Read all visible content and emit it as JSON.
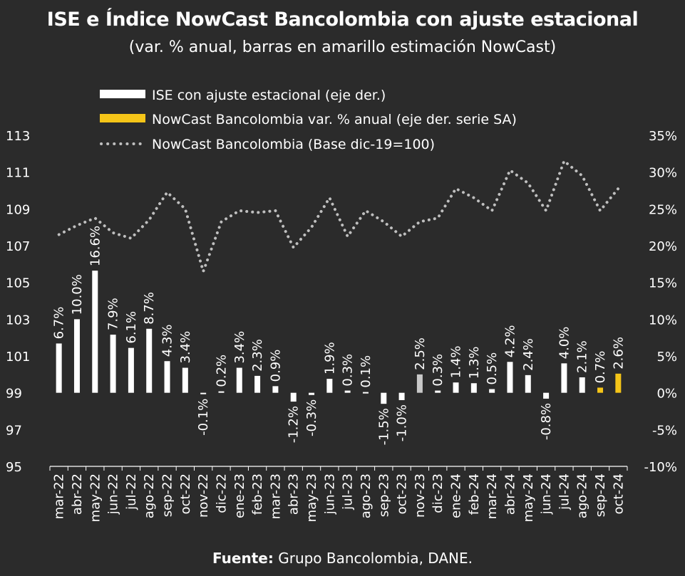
{
  "chart_data": {
    "type": "bar",
    "title": "ISE e Índice NowCast Bancolombia con ajuste estacional",
    "subtitle": "(var. % anual, barras en amarillo estimación NowCast)",
    "source_label": "Fuente:",
    "source_text": "Grupo Bancolombia, DANE.",
    "categories": [
      "mar-22",
      "abr-22",
      "may-22",
      "jun-22",
      "jul-22",
      "ago-22",
      "sep-22",
      "oct-22",
      "nov-22",
      "dic-22",
      "ene-23",
      "feb-23",
      "mar-23",
      "abr-23",
      "may-23",
      "jun-23",
      "jul-23",
      "ago-23",
      "sep-23",
      "oct-23",
      "nov-23",
      "dic-23",
      "ene-24",
      "feb-24",
      "mar-24",
      "abr-24",
      "may-24",
      "jun-24",
      "jul-24",
      "ago-24",
      "sep-24",
      "oct-24"
    ],
    "series": [
      {
        "name": "ISE con ajuste estacional  (eje der.)",
        "axis": "right",
        "kind": "bar",
        "color": "#ffffff",
        "values": [
          6.7,
          10.0,
          16.6,
          7.9,
          6.1,
          8.7,
          4.3,
          3.4,
          -0.1,
          0.2,
          3.4,
          2.3,
          0.9,
          -1.2,
          -0.3,
          1.9,
          0.3,
          0.1,
          -1.5,
          -1.0,
          2.5,
          0.3,
          1.4,
          1.3,
          0.5,
          4.2,
          2.4,
          -0.8,
          4.0,
          2.1,
          null,
          null
        ],
        "labels": [
          "6.7%",
          "10.0%",
          "16.6%",
          "7.9%",
          "6.1%",
          "8.7%",
          "4.3%",
          "3.4%",
          "-0.1%",
          "0.2%",
          "3.4%",
          "2.3%",
          "0.9%",
          "-1.2%",
          "-0.3%",
          "1.9%",
          "0.3%",
          "0.1%",
          "-1.5%",
          "-1.0%",
          "2.5%",
          "0.3%",
          "1.4%",
          "1.3%",
          "0.5%",
          "4.2%",
          "2.4%",
          "-0.8%",
          "4.0%",
          "2.1%",
          null,
          null
        ]
      },
      {
        "name": "NowCast Bancolombia var. % anual (eje der. serie SA)",
        "axis": "right",
        "kind": "bar",
        "color": "#f5c518",
        "values": [
          null,
          null,
          null,
          null,
          null,
          null,
          null,
          null,
          null,
          null,
          null,
          null,
          null,
          null,
          null,
          null,
          null,
          null,
          null,
          null,
          null,
          null,
          null,
          null,
          null,
          null,
          null,
          null,
          null,
          null,
          0.7,
          2.6
        ],
        "labels": [
          null,
          null,
          null,
          null,
          null,
          null,
          null,
          null,
          null,
          null,
          null,
          null,
          null,
          null,
          null,
          null,
          null,
          null,
          null,
          null,
          null,
          null,
          null,
          null,
          null,
          null,
          null,
          null,
          null,
          null,
          "0.7%",
          "2.6%"
        ]
      },
      {
        "name": "NowCast Bancolombia (Base dic-19=100)",
        "axis": "left",
        "kind": "line-dotted",
        "color": "#bfbfbf",
        "values": [
          107.6,
          108.1,
          108.5,
          107.7,
          107.4,
          108.4,
          109.9,
          109.0,
          105.6,
          108.3,
          108.9,
          108.8,
          108.9,
          106.9,
          108.0,
          109.6,
          107.5,
          108.9,
          108.3,
          107.5,
          108.3,
          108.5,
          110.1,
          109.6,
          108.9,
          111.1,
          110.4,
          108.9,
          111.6,
          110.8,
          108.9,
          110.1
        ]
      }
    ],
    "left_axis": {
      "min": 95,
      "max": 113,
      "ticks": [
        "95",
        "97",
        "99",
        "101",
        "103",
        "105",
        "107",
        "109",
        "111",
        "113"
      ]
    },
    "right_axis": {
      "min": -10,
      "max": 35,
      "ticks": [
        "-10%",
        "-5%",
        "0%",
        "5%",
        "10%",
        "15%",
        "20%",
        "25%",
        "30%",
        "35%"
      ]
    },
    "bar_colors": {
      "default": "#ffffff",
      "highlight": "#c8c8c8",
      "highlight_category": "nov-23",
      "nowcast": "#f5c518"
    },
    "grid": false,
    "legend_position": "top-left"
  }
}
